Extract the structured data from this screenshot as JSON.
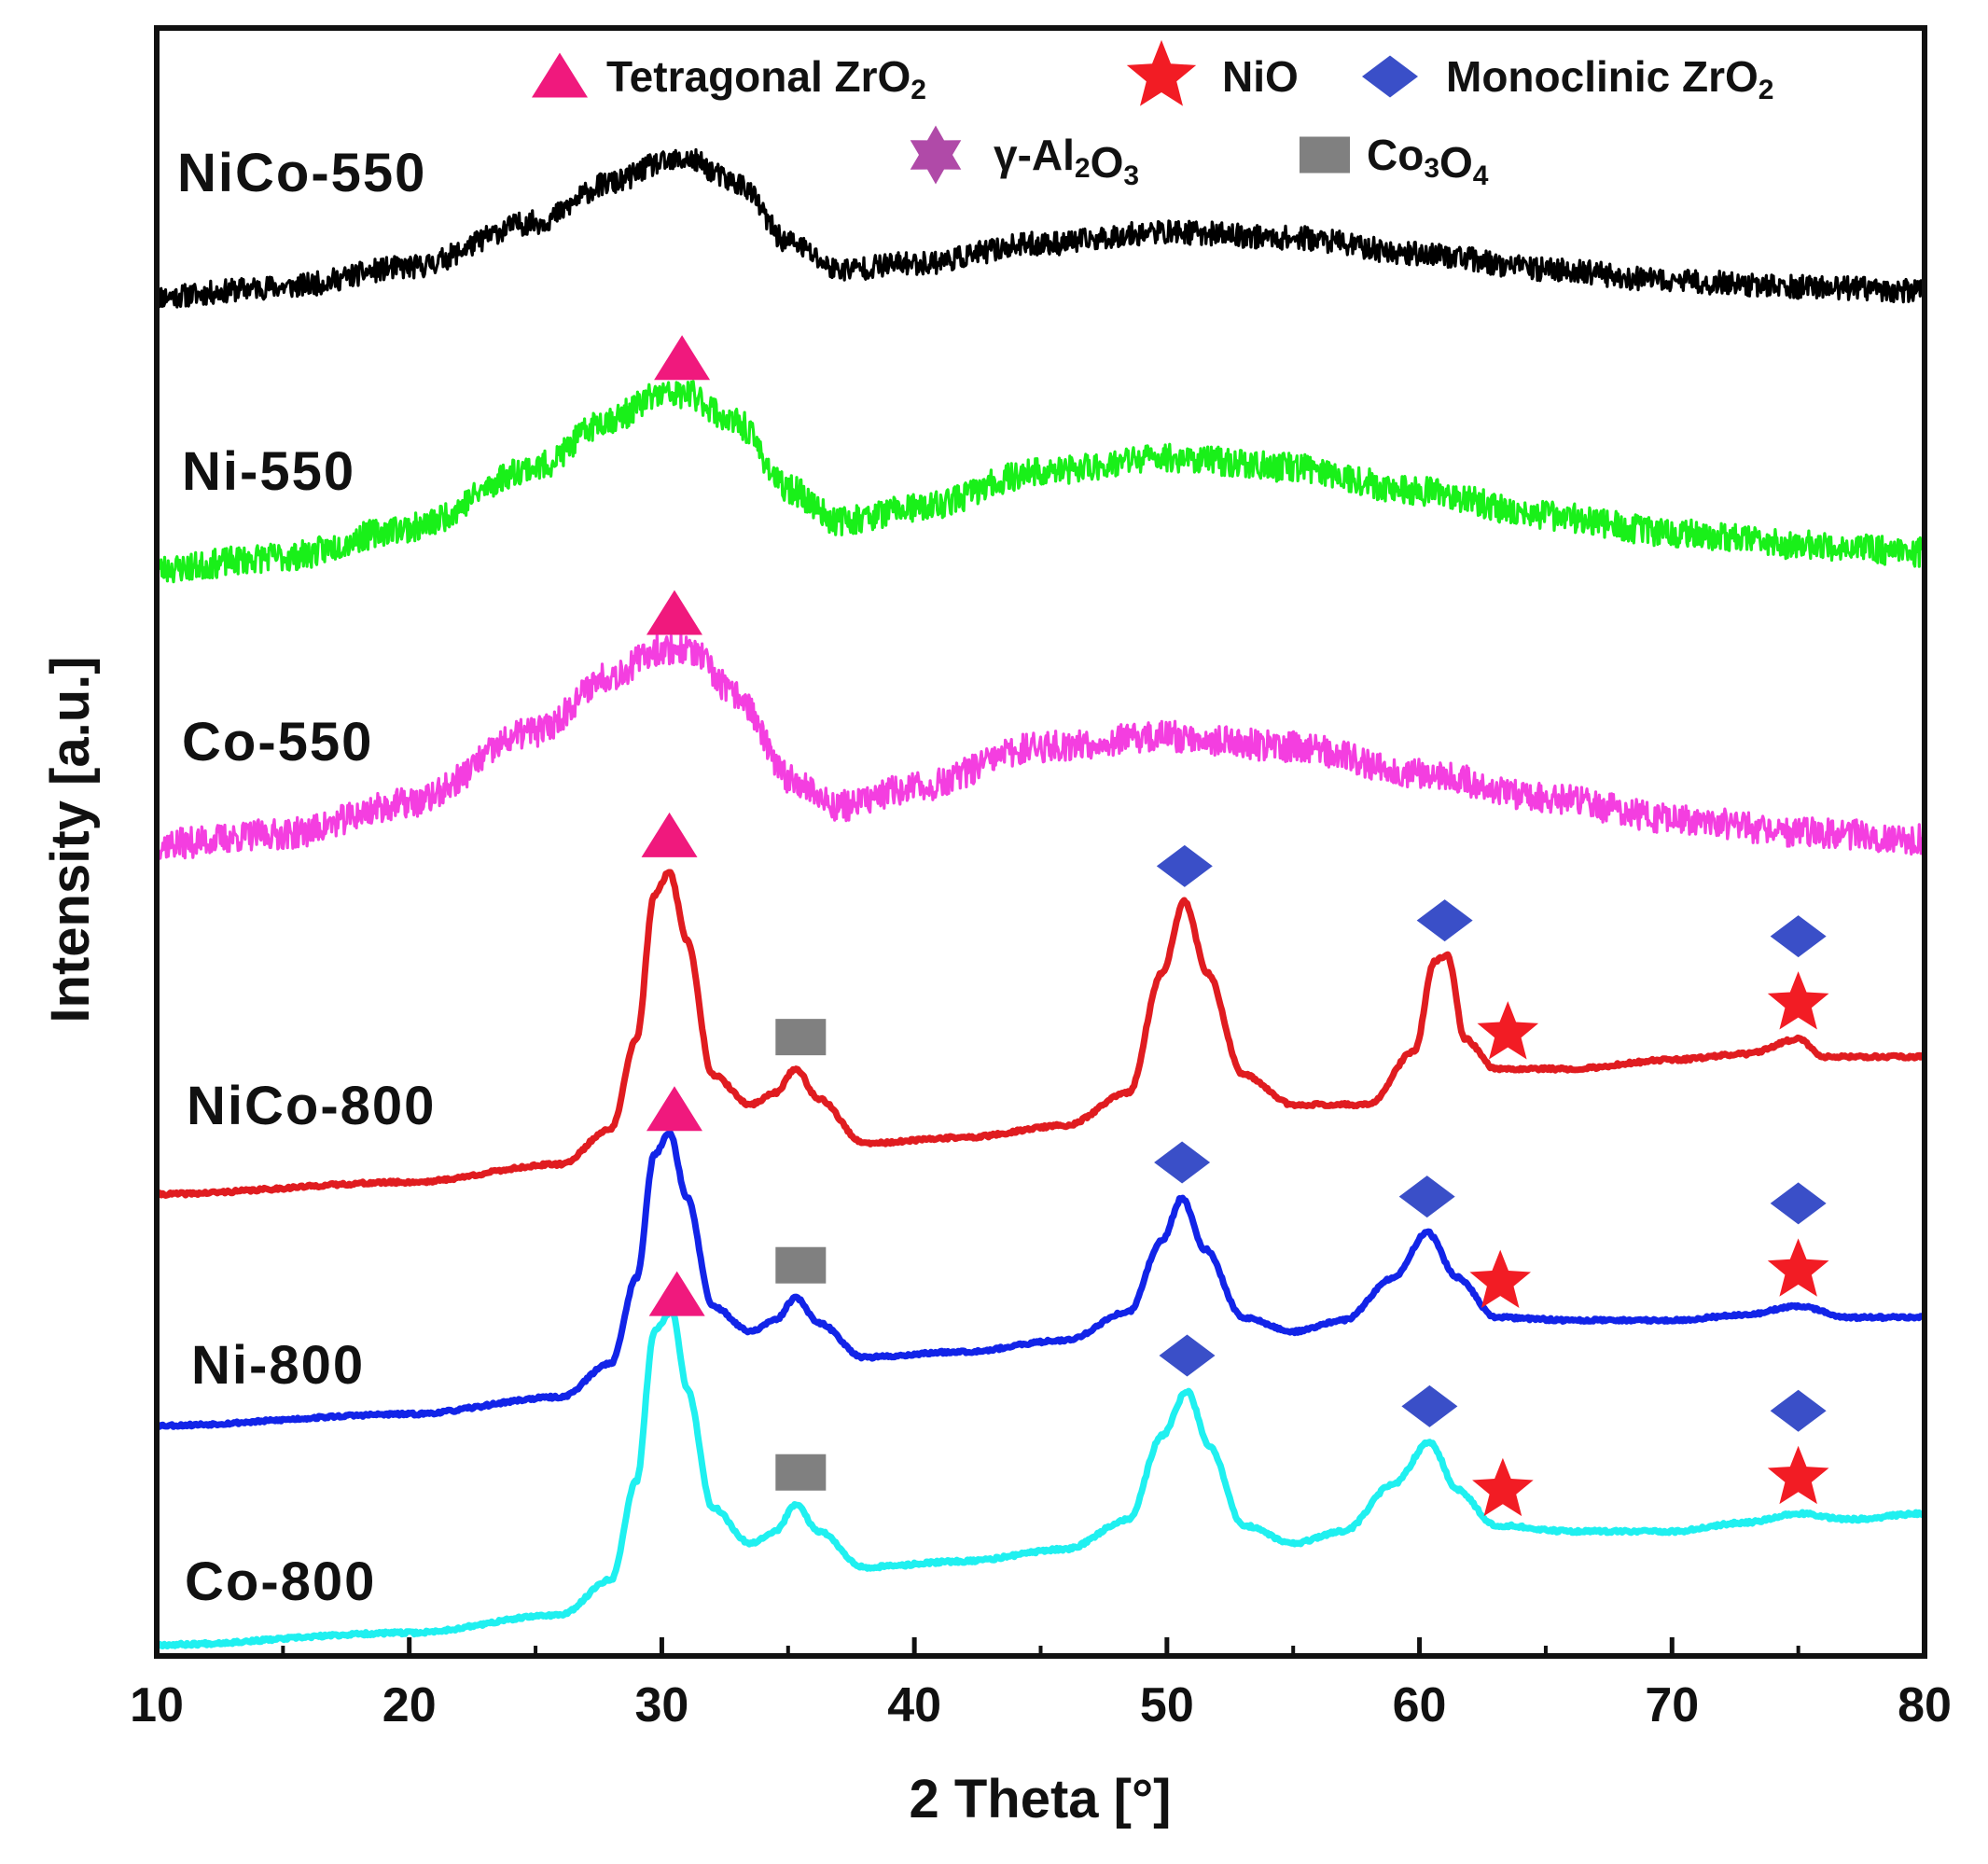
{
  "chart_data": {
    "type": "line",
    "title": "",
    "xlabel": "2 Theta [°]",
    "ylabel": "Intensity [a.u.]",
    "xlim": [
      10,
      80
    ],
    "xticks": [
      10,
      20,
      30,
      40,
      50,
      60,
      70,
      80
    ],
    "yticks": [],
    "grid": false,
    "legend_position": "top",
    "legend": [
      {
        "key": "tetragonal",
        "marker": "triangle",
        "color": "#f0197d",
        "label": "Tetragonal ZrO",
        "sub": "2"
      },
      {
        "key": "nio",
        "marker": "star",
        "color": "#f21c24",
        "label": "NiO",
        "sub": ""
      },
      {
        "key": "monoclinic",
        "marker": "diamond",
        "color": "#3a4fc8",
        "label": "Monoclinic ZrO",
        "sub": "2"
      },
      {
        "key": "alumina",
        "marker": "hexagram",
        "color": "#b04aa8",
        "label": "γ-Al",
        "sub": "2",
        "label2": "O",
        "sub2": "3"
      },
      {
        "key": "co3o4",
        "marker": "square",
        "color": "#808080",
        "label": "Co",
        "sub": "3",
        "label2": "O",
        "sub2": "4"
      }
    ],
    "series": [
      {
        "name": "NiCo-550",
        "color": "#000000",
        "noisy": true,
        "noise": 0.06,
        "seed": 11,
        "x": [
          10,
          15,
          20,
          25,
          28,
          30,
          31,
          33,
          35,
          37,
          40,
          45,
          50,
          55,
          60,
          65,
          70,
          75,
          80
        ],
        "y": [
          0.0,
          0.05,
          0.15,
          0.38,
          0.58,
          0.68,
          0.7,
          0.58,
          0.28,
          0.14,
          0.17,
          0.27,
          0.33,
          0.3,
          0.22,
          0.14,
          0.08,
          0.05,
          0.03
        ]
      },
      {
        "name": "Ni-550",
        "color": "#19f019",
        "noisy": true,
        "noise": 0.06,
        "seed": 23,
        "x": [
          10,
          15,
          20,
          25,
          28,
          30,
          31,
          33,
          35,
          37,
          40,
          45,
          50,
          55,
          60,
          65,
          70,
          75,
          80
        ],
        "y": [
          0.0,
          0.05,
          0.17,
          0.42,
          0.62,
          0.72,
          0.72,
          0.6,
          0.33,
          0.2,
          0.25,
          0.4,
          0.46,
          0.42,
          0.32,
          0.22,
          0.15,
          0.1,
          0.07
        ]
      },
      {
        "name": "Co-550",
        "color": "#f43ee0",
        "noisy": true,
        "noise": 0.06,
        "seed": 37,
        "x": [
          10,
          15,
          20,
          25,
          28,
          30,
          31,
          33,
          35,
          37,
          40,
          45,
          50,
          55,
          60,
          65,
          70,
          75,
          80
        ],
        "y": [
          0.0,
          0.04,
          0.16,
          0.44,
          0.66,
          0.76,
          0.76,
          0.58,
          0.26,
          0.15,
          0.22,
          0.38,
          0.42,
          0.38,
          0.28,
          0.18,
          0.1,
          0.05,
          0.02
        ]
      },
      {
        "name": "NiCo-800",
        "color": "#e01c20",
        "noisy": false,
        "seed": 41,
        "x": [
          10,
          20,
          26,
          28,
          29,
          29.7,
          30.3,
          31,
          32,
          33.5,
          34.5,
          35.3,
          36.2,
          38,
          42,
          46,
          48.5,
          49.8,
          50.7,
          51.6,
          53,
          55,
          58,
          59.8,
          60.6,
          61.1,
          61.8,
          63,
          66,
          70,
          73,
          75,
          76,
          80
        ],
        "y": [
          0.0,
          0.04,
          0.1,
          0.22,
          0.52,
          1.0,
          1.08,
          0.85,
          0.4,
          0.3,
          0.34,
          0.42,
          0.32,
          0.17,
          0.19,
          0.23,
          0.34,
          0.74,
          0.98,
          0.74,
          0.4,
          0.3,
          0.3,
          0.48,
          0.78,
          0.8,
          0.52,
          0.42,
          0.42,
          0.45,
          0.47,
          0.52,
          0.46,
          0.46
        ]
      },
      {
        "name": "Ni-800",
        "color": "#1224e8",
        "noisy": false,
        "seed": 53,
        "x": [
          10,
          20,
          26,
          28,
          29,
          29.7,
          30.3,
          31,
          32,
          33.5,
          34.5,
          35.3,
          36.2,
          38,
          42,
          46,
          48.5,
          49.8,
          50.6,
          51.5,
          53,
          55,
          57,
          59,
          60.3,
          61.5,
          63,
          66,
          70,
          73,
          75,
          77,
          80
        ],
        "y": [
          0.0,
          0.04,
          0.1,
          0.22,
          0.52,
          0.95,
          1.03,
          0.8,
          0.42,
          0.33,
          0.37,
          0.45,
          0.36,
          0.24,
          0.26,
          0.3,
          0.4,
          0.65,
          0.8,
          0.62,
          0.38,
          0.33,
          0.37,
          0.52,
          0.68,
          0.52,
          0.38,
          0.37,
          0.37,
          0.39,
          0.42,
          0.38,
          0.38
        ]
      },
      {
        "name": "Co-800",
        "color": "#1ff0f0",
        "noisy": false,
        "seed": 67,
        "x": [
          10,
          20,
          26,
          28,
          29,
          29.7,
          30.4,
          31,
          32,
          33.5,
          34.5,
          35.3,
          36.2,
          38,
          42,
          46,
          48.5,
          49.8,
          50.8,
          51.7,
          53,
          55,
          57,
          59,
          60.4,
          61.5,
          63,
          66,
          70,
          73,
          75,
          77,
          80
        ],
        "y": [
          0.0,
          0.04,
          0.1,
          0.22,
          0.55,
          1.05,
          1.12,
          0.86,
          0.46,
          0.34,
          0.38,
          0.47,
          0.38,
          0.26,
          0.28,
          0.32,
          0.42,
          0.7,
          0.85,
          0.66,
          0.4,
          0.34,
          0.38,
          0.54,
          0.68,
          0.52,
          0.4,
          0.38,
          0.38,
          0.41,
          0.44,
          0.42,
          0.44
        ]
      }
    ],
    "annotations": [
      {
        "series": "Ni-550",
        "marker": "tetragonal",
        "x": 30.8
      },
      {
        "series": "Co-550",
        "marker": "tetragonal",
        "x": 30.5
      },
      {
        "series": "NiCo-800",
        "marker": "tetragonal",
        "x": 30.3
      },
      {
        "series": "NiCo-800",
        "marker": "co3o4",
        "x": 35.5
      },
      {
        "series": "NiCo-800",
        "marker": "monoclinic",
        "x": 50.7
      },
      {
        "series": "NiCo-800",
        "marker": "monoclinic",
        "x": 61.0
      },
      {
        "series": "NiCo-800",
        "marker": "nio",
        "x": 63.5
      },
      {
        "series": "NiCo-800",
        "marker": "nio",
        "x": 75.0
      },
      {
        "series": "NiCo-800",
        "marker": "monoclinic",
        "x": 75.0
      },
      {
        "series": "Ni-800",
        "marker": "tetragonal",
        "x": 30.5
      },
      {
        "series": "Ni-800",
        "marker": "co3o4",
        "x": 35.5
      },
      {
        "series": "Ni-800",
        "marker": "monoclinic",
        "x": 50.6
      },
      {
        "series": "Ni-800",
        "marker": "monoclinic",
        "x": 60.3
      },
      {
        "series": "Ni-800",
        "marker": "nio",
        "x": 63.2
      },
      {
        "series": "Ni-800",
        "marker": "nio",
        "x": 75.0
      },
      {
        "series": "Ni-800",
        "marker": "monoclinic",
        "x": 75.0
      },
      {
        "series": "Co-800",
        "marker": "tetragonal",
        "x": 30.6
      },
      {
        "series": "Co-800",
        "marker": "co3o4",
        "x": 35.5
      },
      {
        "series": "Co-800",
        "marker": "monoclinic",
        "x": 50.8
      },
      {
        "series": "Co-800",
        "marker": "monoclinic",
        "x": 60.4
      },
      {
        "series": "Co-800",
        "marker": "nio",
        "x": 63.3
      },
      {
        "series": "Co-800",
        "marker": "nio",
        "x": 75.0
      },
      {
        "series": "Co-800",
        "marker": "monoclinic",
        "x": 75.0
      }
    ]
  }
}
